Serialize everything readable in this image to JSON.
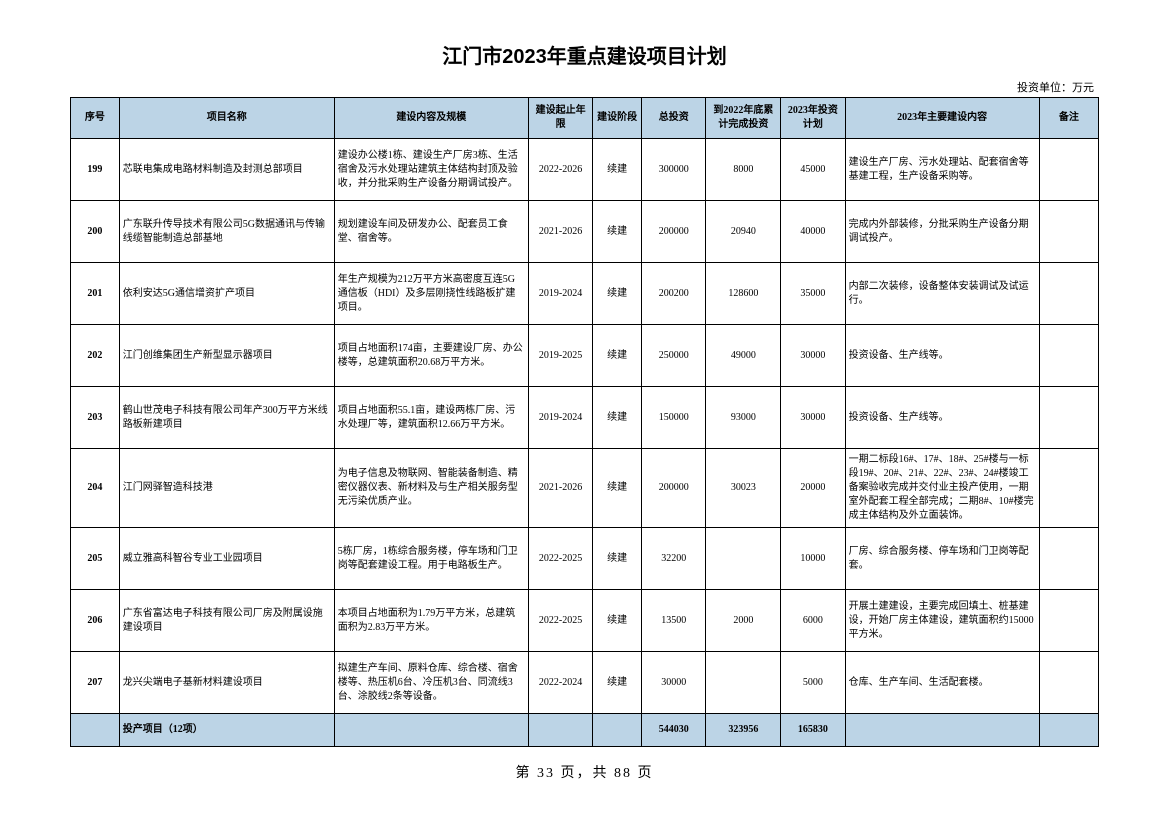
{
  "title": "江门市2023年重点建设项目计划",
  "unit_label": "投资单位：万元",
  "columns": [
    "序号",
    "项目名称",
    "建设内容及规模",
    "建设起止年限",
    "建设阶段",
    "总投资",
    "到2022年底累计完成投资",
    "2023年投资计划",
    "2023年主要建设内容",
    "备注"
  ],
  "rows": [
    {
      "seq": "199",
      "name": "芯联电集成电路材料制造及封测总部项目",
      "content": "建设办公楼1栋、建设生产厂房3栋、生活宿舍及污水处理站建筑主体结构封顶及验收，并分批采购生产设备分期调试投产。",
      "period": "2022-2026",
      "stage": "续建",
      "total": "300000",
      "done": "8000",
      "plan": "45000",
      "main": "建设生产厂房、污水处理站、配套宿舍等基建工程，生产设备采购等。",
      "remark": ""
    },
    {
      "seq": "200",
      "name": "广东联升传导技术有限公司5G数据通讯与传输线缆智能制造总部基地",
      "content": "规划建设车间及研发办公、配套员工食堂、宿舍等。",
      "period": "2021-2026",
      "stage": "续建",
      "total": "200000",
      "done": "20940",
      "plan": "40000",
      "main": "完成内外部装修，分批采购生产设备分期调试投产。",
      "remark": ""
    },
    {
      "seq": "201",
      "name": "依利安达5G通信增资扩产项目",
      "content": "年生产规模为212万平方米高密度互连5G通信板（HDI）及多层刚挠性线路板扩建项目。",
      "period": "2019-2024",
      "stage": "续建",
      "total": "200200",
      "done": "128600",
      "plan": "35000",
      "main": "内部二次装修，设备整体安装调试及试运行。",
      "remark": ""
    },
    {
      "seq": "202",
      "name": "江门创维集团生产新型显示器项目",
      "content": "项目占地面积174亩，主要建设厂房、办公楼等，总建筑面积20.68万平方米。",
      "period": "2019-2025",
      "stage": "续建",
      "total": "250000",
      "done": "49000",
      "plan": "30000",
      "main": "投资设备、生产线等。",
      "remark": ""
    },
    {
      "seq": "203",
      "name": "鹤山世茂电子科技有限公司年产300万平方米线路板新建项目",
      "content": "项目占地面积55.1亩，建设两栋厂房、污水处理厂等，建筑面积12.66万平方米。",
      "period": "2019-2024",
      "stage": "续建",
      "total": "150000",
      "done": "93000",
      "plan": "30000",
      "main": "投资设备、生产线等。",
      "remark": ""
    },
    {
      "seq": "204",
      "name": "江门网驿智造科技港",
      "content": "为电子信息及物联网、智能装备制造、精密仪器仪表、新材料及与生产相关服务型无污染优质产业。",
      "period": "2021-2026",
      "stage": "续建",
      "total": "200000",
      "done": "30023",
      "plan": "20000",
      "main": "一期二标段16#、17#、18#、25#楼与一标段19#、20#、21#、22#、23#、24#楼竣工备案验收完成并交付业主投产使用，一期室外配套工程全部完成；二期8#、10#楼完成主体结构及外立面装饰。",
      "remark": ""
    },
    {
      "seq": "205",
      "name": "威立雅高科智谷专业工业园项目",
      "content": "5栋厂房，1栋综合服务楼，停车场和门卫岗等配套建设工程。用于电路板生产。",
      "period": "2022-2025",
      "stage": "续建",
      "total": "32200",
      "done": "",
      "plan": "10000",
      "main": "厂房、综合服务楼、停车场和门卫岗等配套。",
      "remark": ""
    },
    {
      "seq": "206",
      "name": "广东省富达电子科技有限公司厂房及附属设施建设项目",
      "content": "本项目占地面积为1.79万平方米，总建筑面积为2.83万平方米。",
      "period": "2022-2025",
      "stage": "续建",
      "total": "13500",
      "done": "2000",
      "plan": "6000",
      "main": "开展土建建设，主要完成回填土、桩基建设，开始厂房主体建设，建筑面积约15000平方米。",
      "remark": ""
    },
    {
      "seq": "207",
      "name": "龙兴尖端电子基新材料建设项目",
      "content": "拟建生产车间、原料仓库、综合楼、宿舍楼等、热压机6台、冷压机3台、同流线3台、涂胶线2条等设备。",
      "period": "2022-2024",
      "stage": "续建",
      "total": "30000",
      "done": "",
      "plan": "5000",
      "main": "仓库、生产车间、生活配套楼。",
      "remark": ""
    }
  ],
  "subtotal": {
    "label": "投产项目（12项）",
    "total": "544030",
    "done": "323956",
    "plan": "165830"
  },
  "pager": "第 33 页，共 88 页",
  "colors": {
    "header_bg": "#bcd4e6",
    "border": "#000000",
    "background": "#ffffff"
  }
}
